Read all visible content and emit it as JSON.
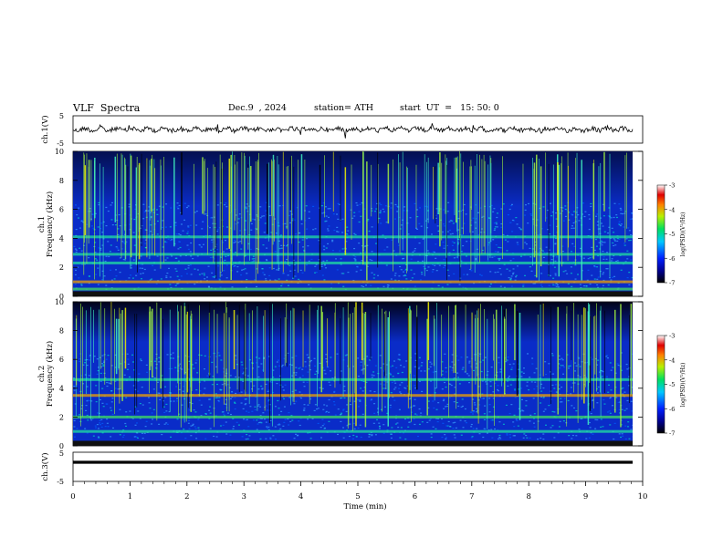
{
  "header": {
    "title": "VLF  Spectra",
    "date": "Dec.9  , 2024",
    "station": "station= ATH",
    "start": "start  UT  =   15: 50: 0"
  },
  "chart_data": [
    {
      "type": "line",
      "title": "",
      "ylabel": "ch.1(V)",
      "ylim": [
        -5,
        5
      ],
      "yticks": [
        "5",
        "-5"
      ],
      "xlim": [
        0,
        10
      ]
    },
    {
      "type": "heatmap",
      "ylabel_top": "ch.1",
      "ylabel": "Frequency  (kHz)",
      "ylim": [
        0,
        10
      ],
      "yticks": [
        "0",
        "2",
        "4",
        "6",
        "8",
        "10"
      ],
      "xlim": [
        0,
        10
      ],
      "bands_khz": [
        0.5,
        1.0,
        2.3,
        2.9,
        4.1
      ],
      "colorbar": {
        "label": "log(PSD)(V²/Hz)",
        "ticks": [
          "-3",
          "-4",
          "-5",
          "-6",
          "-7"
        ],
        "range": [
          -7,
          -3
        ]
      }
    },
    {
      "type": "heatmap",
      "ylabel_top": "ch.2",
      "ylabel": "Frequency  (kHz)",
      "ylim": [
        0,
        10
      ],
      "yticks": [
        "0",
        "2",
        "4",
        "6",
        "8",
        "10"
      ],
      "xlim": [
        0,
        10
      ],
      "bands_khz": [
        2.0,
        3.5,
        4.6,
        1.0
      ],
      "colorbar": {
        "label": "log(PSD)(V²/Hz)",
        "ticks": [
          "-3",
          "-4",
          "-5",
          "-6",
          "-7"
        ],
        "range": [
          -7,
          -3
        ]
      }
    },
    {
      "type": "line",
      "ylabel": "ch.3(V)",
      "ylim": [
        -5,
        5
      ],
      "yticks": [
        "5",
        "-5"
      ],
      "xlim": [
        0,
        10
      ],
      "value": 0
    }
  ],
  "xaxis": {
    "label": "Time  (min)",
    "ticks": [
      "0",
      "1",
      "2",
      "3",
      "4",
      "5",
      "6",
      "7",
      "8",
      "9",
      "10"
    ]
  },
  "colors": {
    "spectro_bg": "#0a2cc8",
    "dark": "#000018"
  }
}
